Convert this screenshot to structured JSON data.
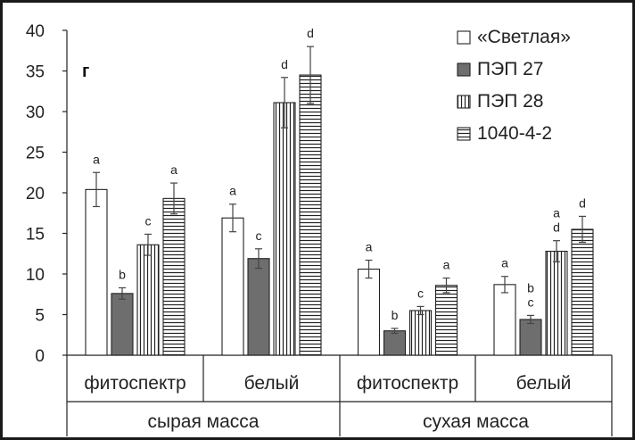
{
  "chart_data": {
    "type": "bar",
    "panel_label": "г",
    "ylim": [
      0,
      40
    ],
    "yticks": [
      0,
      5,
      10,
      15,
      20,
      25,
      30,
      35,
      40
    ],
    "groups": [
      {
        "label": "сырая масса",
        "categories": [
          "фитоспектр",
          "белый"
        ]
      },
      {
        "label": "сухая масса",
        "categories": [
          "фитоспектр",
          "белый"
        ]
      }
    ],
    "series": [
      {
        "name": "«Светлая»",
        "pattern": "white",
        "values": [
          20.4,
          16.9,
          10.6,
          8.7
        ],
        "errors": [
          2.1,
          1.7,
          1.1,
          1.0
        ],
        "letters": [
          "a",
          "a",
          "a",
          "a"
        ]
      },
      {
        "name": "ПЭП 27",
        "pattern": "gray",
        "values": [
          7.6,
          11.9,
          3.0,
          4.4
        ],
        "errors": [
          0.7,
          1.2,
          0.3,
          0.5
        ],
        "letters": [
          "b",
          "c",
          "b",
          "b\nc"
        ]
      },
      {
        "name": "ПЭП 28",
        "pattern": "vertical",
        "values": [
          13.6,
          31.1,
          5.5,
          12.8
        ],
        "errors": [
          1.3,
          3.1,
          0.5,
          1.3
        ],
        "letters": [
          "c",
          "d",
          "c",
          "a\nd"
        ]
      },
      {
        "name": "1040-4-2",
        "pattern": "horizontal",
        "values": [
          19.3,
          34.5,
          8.6,
          15.5
        ],
        "errors": [
          1.9,
          3.5,
          0.9,
          1.6
        ],
        "letters": [
          "a",
          "d",
          "a",
          "d"
        ]
      }
    ],
    "legend_position": "top-right",
    "grid": false
  }
}
